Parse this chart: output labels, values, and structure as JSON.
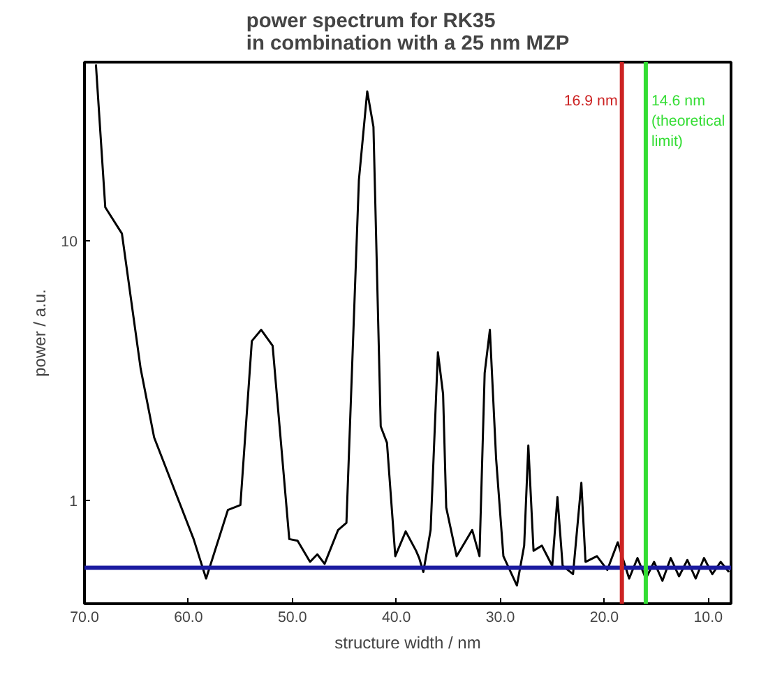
{
  "chart_data": {
    "type": "line",
    "title": "power spectrum for RK35\nin combination with a 25 nm MZP",
    "xlabel": "structure width / nm",
    "ylabel": "power / a.u.",
    "log": "y",
    "marker": "none",
    "line_style": "solid",
    "xlim": [
      70,
      7.8
    ],
    "xticks": [
      {
        "value": 70,
        "label": "70.0"
      },
      {
        "value": 60,
        "label": "60.0"
      },
      {
        "value": 50,
        "label": "50.0"
      },
      {
        "value": 40,
        "label": "40.0"
      },
      {
        "value": 30,
        "label": "30.0"
      },
      {
        "value": 20,
        "label": "20.0"
      },
      {
        "value": 10,
        "label": "10.0"
      }
    ],
    "ylim": [
      0.4,
      49
    ],
    "yticks": [
      1,
      10
    ],
    "series": [
      {
        "color": "#000000",
        "x": [
          68.9,
          68.0,
          66.4,
          64.6,
          63.3,
          59.5,
          58.3,
          56.2,
          55.0,
          53.9,
          53.0,
          51.9,
          50.3,
          49.5,
          48.3,
          47.6,
          46.9,
          45.6,
          44.8,
          43.6,
          42.8,
          42.2,
          41.5,
          40.9,
          40.1,
          39.1,
          38.1,
          37.8,
          37.4,
          36.7,
          36.0,
          35.5,
          35.2,
          34.2,
          32.7,
          32.0,
          31.5,
          31.0,
          30.4,
          29.7,
          28.4,
          27.7,
          27.3,
          26.8,
          26.0,
          25.0,
          24.5,
          24.0,
          23.0,
          22.2,
          21.8,
          20.7,
          19.7,
          18.7,
          17.6,
          16.8,
          16.0,
          15.2,
          14.4,
          13.6,
          12.8,
          12.0,
          11.2,
          10.4,
          9.6,
          8.8,
          8.0
        ],
        "values": [
          48,
          13.5,
          10.7,
          3.23,
          1.75,
          0.71,
          0.5,
          0.92,
          0.96,
          4.12,
          4.55,
          3.95,
          0.71,
          0.7,
          0.58,
          0.62,
          0.57,
          0.77,
          0.82,
          17.2,
          37.8,
          27.6,
          1.93,
          1.67,
          0.61,
          0.76,
          0.64,
          0.6,
          0.53,
          0.77,
          3.73,
          2.57,
          0.94,
          0.61,
          0.77,
          0.61,
          3.1,
          4.55,
          1.45,
          0.61,
          0.47,
          0.67,
          1.63,
          0.64,
          0.67,
          0.56,
          1.03,
          0.56,
          0.52,
          1.17,
          0.58,
          0.61,
          0.54,
          0.69,
          0.5,
          0.6,
          0.5,
          0.58,
          0.49,
          0.6,
          0.51,
          0.59,
          0.5,
          0.6,
          0.52,
          0.58,
          0.53
        ]
      }
    ],
    "ref_lines": [
      {
        "axis": "y",
        "value": 0.55,
        "color": "#1a1aa0"
      },
      {
        "axis": "x",
        "value": 18.3,
        "label": "16.9 nm",
        "color": "#cc2222"
      },
      {
        "axis": "x",
        "value": 16.0,
        "label": "14.6 nm\n(theoretical\nlimit)",
        "color": "#33dd33"
      }
    ]
  }
}
